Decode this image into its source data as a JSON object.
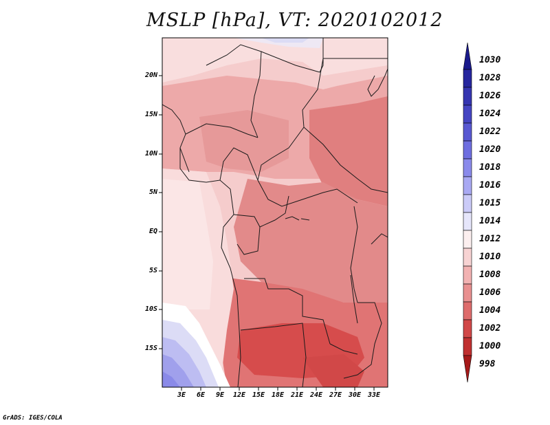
{
  "title": "MSLP [hPa], VT: 2020102012",
  "footer": "GrADS: IGES/COLA",
  "lat_labels": [
    "20N",
    "15N",
    "10N",
    "5N",
    "EQ",
    "5S",
    "10S",
    "15S"
  ],
  "lon_labels": [
    "3E",
    "6E",
    "9E",
    "12E",
    "15E",
    "18E",
    "21E",
    "24E",
    "27E",
    "30E",
    "33E"
  ],
  "colorbar": {
    "labels": [
      "1030",
      "1028",
      "1026",
      "1024",
      "1022",
      "1020",
      "1018",
      "1016",
      "1015",
      "1014",
      "1012",
      "1010",
      "1008",
      "1006",
      "1004",
      "1002",
      "1000",
      "998"
    ],
    "colors": [
      "#1a1a8c",
      "#26269e",
      "#3535b0",
      "#4545c2",
      "#5858d2",
      "#6e6ee0",
      "#8a8aeb",
      "#a9a9f3",
      "#cbcbf8",
      "#e6e6fb",
      "#fcefef",
      "#f7d3d3",
      "#f2b2b2",
      "#e99090",
      "#de6c6c",
      "#d14848",
      "#c03030",
      "#a61a1a"
    ]
  }
}
